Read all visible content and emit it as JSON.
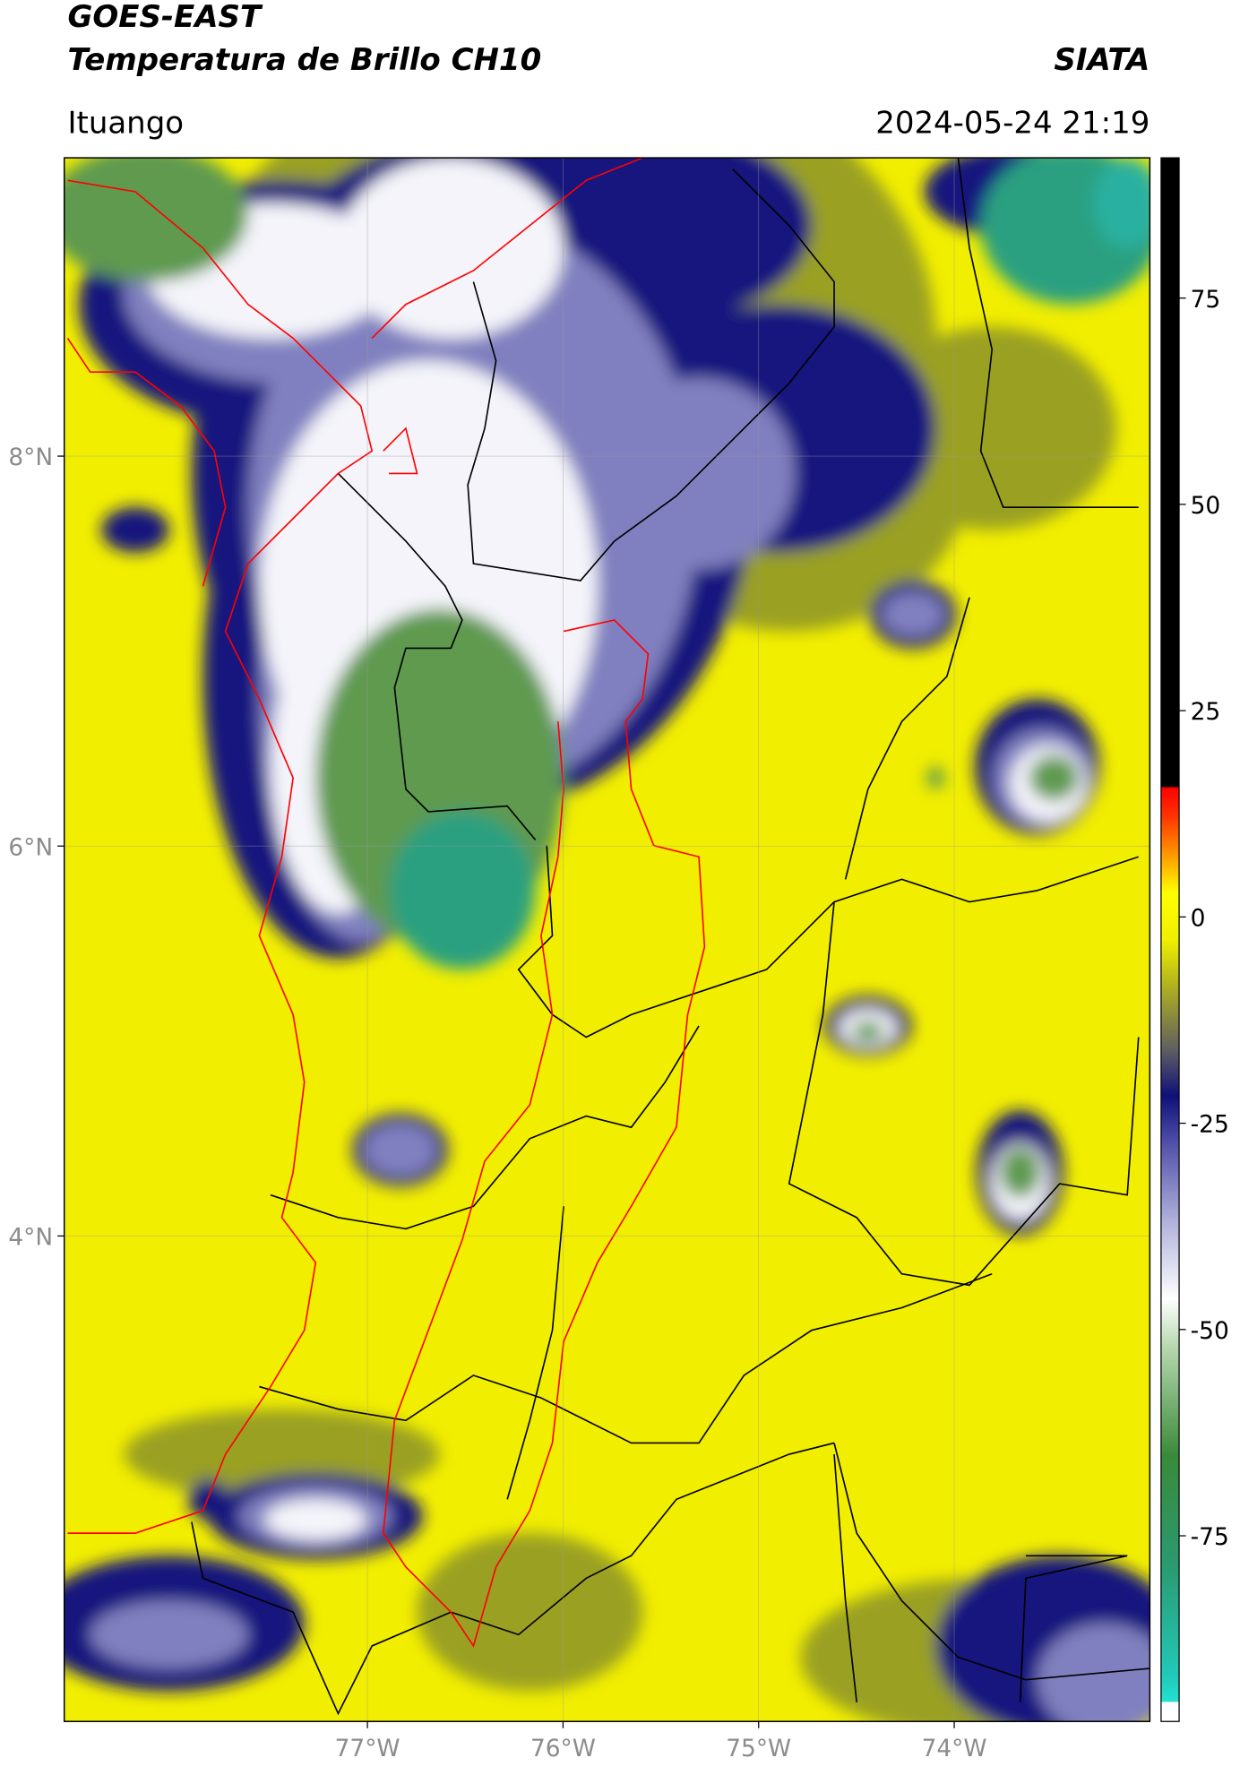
{
  "header": {
    "satellite": "GOES-EAST",
    "product": "Temperatura de Brillo CH10",
    "source": "SIATA",
    "location": "Ituango",
    "datetime": "2024-05-24 21:19"
  },
  "map": {
    "xlim": [
      -78.55,
      -73.0
    ],
    "ylim": [
      1.51,
      9.53
    ],
    "xticks": [
      {
        "value": -77,
        "label": "77°W"
      },
      {
        "value": -76,
        "label": "76°W"
      },
      {
        "value": -75,
        "label": "75°W"
      },
      {
        "value": -74,
        "label": "74°W"
      }
    ],
    "yticks": [
      {
        "value": 8,
        "label": "8°N"
      },
      {
        "value": 6,
        "label": "6°N"
      },
      {
        "value": 4,
        "label": "4°N"
      }
    ]
  },
  "colorbar": {
    "lim": [
      -97.5,
      92
    ],
    "ticks": [
      75,
      50,
      25,
      0,
      -25,
      -50,
      -75
    ]
  }
}
